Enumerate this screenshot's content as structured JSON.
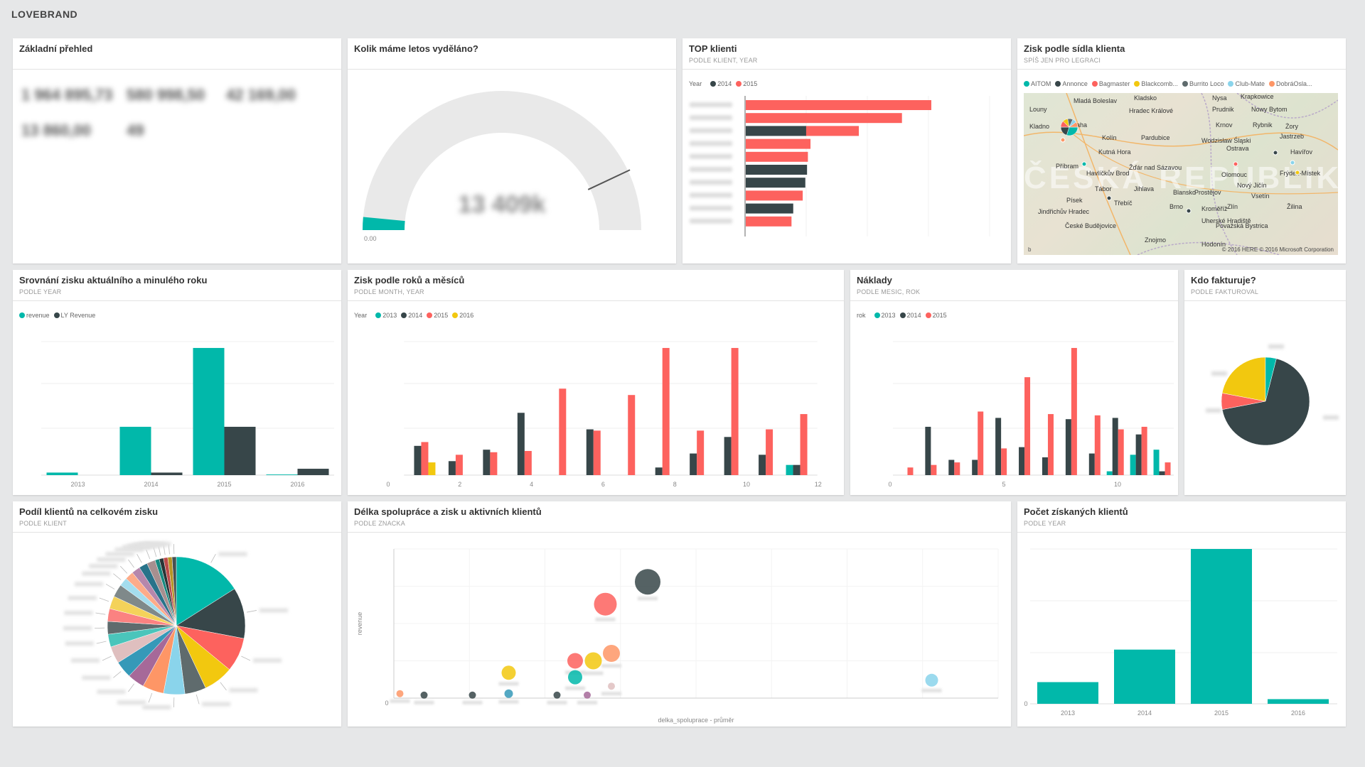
{
  "app": {
    "title": "LOVEBRAND"
  },
  "colors": {
    "teal": "#01b8aa",
    "dark": "#374649",
    "red": "#fd625e",
    "yellow": "#f2c80f",
    "gray": "#5f6b6d",
    "lightblue": "#8ad4eb",
    "orange": "#fe9666",
    "purple": "#a66999"
  },
  "tiles": {
    "basic": {
      "title": "Základní přehled",
      "kpis": [
        "1 964 895,73",
        "580 998,50",
        "42 169,00",
        "13 860,00",
        "49"
      ]
    },
    "gauge": {
      "title": "Kolik máme letos vyděláno?",
      "min_label": "0.00",
      "value_label": "13 409k",
      "fill_fraction": 0.03,
      "target_fraction": 0.86
    },
    "top": {
      "title": "TOP klienti",
      "subtitle": "PODLE KLIENT, YEAR",
      "legend_title": "Year",
      "legend": [
        {
          "name": "2014",
          "color": "#374649"
        },
        {
          "name": "2015",
          "color": "#fd625e"
        }
      ],
      "chart_data": {
        "type": "bar",
        "series_of_bars": [
          "2015",
          "2015",
          "2014",
          "2015",
          "2015",
          "2014",
          "2014",
          "2015",
          "2014",
          "2015"
        ],
        "segments": [
          [
            {
              "s": "2015",
              "v": 215
            }
          ],
          [
            {
              "s": "2015",
              "v": 181
            }
          ],
          [
            {
              "s": "2014",
              "v": 70
            },
            {
              "s": "2015",
              "v": 61
            }
          ],
          [
            {
              "s": "2015",
              "v": 75
            }
          ],
          [
            {
              "s": "2015",
              "v": 72
            }
          ],
          [
            {
              "s": "2014",
              "v": 71
            }
          ],
          [
            {
              "s": "2014",
              "v": 69
            }
          ],
          [
            {
              "s": "2015",
              "v": 66
            }
          ],
          [
            {
              "s": "2014",
              "v": 55
            }
          ],
          [
            {
              "s": "2015",
              "v": 53
            }
          ]
        ],
        "xlim": [
          0,
          290
        ]
      }
    },
    "map": {
      "title": "Zisk podle sídla klienta",
      "subtitle": "SPÍŠ JEN PRO LEGRACI",
      "legend": [
        {
          "name": "AITOM",
          "color": "#01b8aa"
        },
        {
          "name": "Annonce",
          "color": "#374649"
        },
        {
          "name": "Bagmaster",
          "color": "#fd625e"
        },
        {
          "name": "Blackcomb...",
          "color": "#f2c80f"
        },
        {
          "name": "Burrito Loco",
          "color": "#5f6b6d"
        },
        {
          "name": "Club-Mate",
          "color": "#8ad4eb"
        },
        {
          "name": "DobráOsla...",
          "color": "#fe9666"
        }
      ],
      "country": "ČESKÁ REPUBLIKA",
      "copyright": "© 2016 HERE  © 2016 Microsoft Corporation",
      "cities": [
        "Louny",
        "Mladá Boleslav",
        "Kladsko",
        "Nysa",
        "Krapkowice",
        "Kladno",
        "Hradec Králové",
        "Prudnik",
        "Nowy Bytom",
        "Praha",
        "Kolín",
        "Pardubice",
        "Krnov",
        "Rybnik",
        "Żory",
        "Wodzisław Śląski",
        "Jastrzeb",
        "Kutná Hora",
        "Ostrava",
        "Havířov",
        "Příbram",
        "Havlíčkův Brod",
        "Žďár nad Sázavou",
        "Olomouc",
        "Frýdek-Místek",
        "Tábor",
        "Jihlava",
        "Blansko",
        "Prostějov",
        "Nový Jičín",
        "Vsetín",
        "Písek",
        "Třebíč",
        "Brno",
        "Zlín",
        "Žilina",
        "Jindřichův Hradec",
        "Kroměříž",
        "Uherské Hradiště",
        "České Budějovice",
        "Považská Bystrica",
        "Znojmo",
        "Hodonín"
      ]
    },
    "compare": {
      "title": "Srovnání zisku aktuálního a minulého roku",
      "subtitle": "PODLE YEAR",
      "legend": [
        {
          "name": "revenue",
          "color": "#01b8aa"
        },
        {
          "name": "LY Revenue",
          "color": "#374649"
        }
      ],
      "chart_data": {
        "type": "bar",
        "categories": [
          "2013",
          "2014",
          "2015",
          "2016"
        ],
        "series": [
          {
            "name": "revenue",
            "values": [
              2,
              38,
              100,
              0.5
            ]
          },
          {
            "name": "LY Revenue",
            "values": [
              0,
              2,
              38,
              5
            ]
          }
        ],
        "ylim": [
          0,
          105
        ]
      }
    },
    "months": {
      "title": "Zisk podle roků a měsíců",
      "subtitle": "PODLE MONTH, YEAR",
      "legend_title": "Year",
      "legend": [
        {
          "name": "2013",
          "color": "#01b8aa"
        },
        {
          "name": "2014",
          "color": "#374649"
        },
        {
          "name": "2015",
          "color": "#fd625e"
        },
        {
          "name": "2016",
          "color": "#f2c80f"
        }
      ],
      "chart_data": {
        "type": "bar",
        "x": [
          1,
          2,
          3,
          4,
          5,
          6,
          7,
          8,
          9,
          10,
          11,
          12
        ],
        "x_ticks": [
          "0",
          "2",
          "4",
          "6",
          "8",
          "10",
          "12"
        ],
        "series": [
          {
            "name": "2013",
            "values": [
              0,
              0,
              0,
              0,
              0,
              0,
              0,
              0,
              0,
              0,
              0,
              8
            ]
          },
          {
            "name": "2014",
            "values": [
              23,
              11,
              20,
              49,
              0,
              36,
              0,
              6,
              17,
              30,
              16,
              8
            ]
          },
          {
            "name": "2015",
            "values": [
              26,
              16,
              18,
              19,
              68,
              35,
              63,
              100,
              35,
              100,
              36,
              48
            ]
          },
          {
            "name": "2016",
            "values": [
              10,
              0,
              0,
              0,
              0,
              0,
              0,
              0,
              0,
              0,
              0,
              0
            ]
          }
        ],
        "ylim": [
          0,
          105
        ]
      }
    },
    "costs": {
      "title": "Náklady",
      "subtitle": "PODLE MESIC, ROK",
      "legend_title": "rok",
      "legend": [
        {
          "name": "2013",
          "color": "#01b8aa"
        },
        {
          "name": "2014",
          "color": "#374649"
        },
        {
          "name": "2015",
          "color": "#fd625e"
        }
      ],
      "chart_data": {
        "type": "bar",
        "x": [
          1,
          2,
          3,
          4,
          5,
          6,
          7,
          8,
          9,
          10,
          11,
          12
        ],
        "x_ticks": [
          "0",
          "5",
          "10"
        ],
        "series": [
          {
            "name": "2013",
            "values": [
              0,
              0,
              0,
              0,
              0,
              0,
              0,
              0,
              0,
              3,
              16,
              20
            ]
          },
          {
            "name": "2014",
            "values": [
              0,
              38,
              12,
              12,
              45,
              22,
              14,
              44,
              17,
              45,
              32,
              3
            ]
          },
          {
            "name": "2015",
            "values": [
              6,
              8,
              10,
              50,
              21,
              77,
              48,
              100,
              47,
              36,
              38,
              10
            ]
          }
        ],
        "ylim": [
          0,
          105
        ]
      }
    },
    "invoice": {
      "title": "Kdo fakturuje?",
      "subtitle": "PODLE FAKTUROVAL",
      "chart_data": {
        "type": "pie",
        "slices": [
          {
            "value": 68,
            "color": "#374649"
          },
          {
            "value": 6,
            "color": "#fd625e"
          },
          {
            "value": 22,
            "color": "#f2c80f"
          },
          {
            "value": 4,
            "color": "#01b8aa"
          }
        ]
      }
    },
    "share": {
      "title": "Podíl klientů na celkovém zisku",
      "subtitle": "PODLE KLIENT",
      "chart_data": {
        "type": "pie",
        "slices": [
          {
            "value": 16,
            "color": "#01b8aa"
          },
          {
            "value": 12,
            "color": "#374649"
          },
          {
            "value": 8,
            "color": "#fd625e"
          },
          {
            "value": 7,
            "color": "#f2c80f"
          },
          {
            "value": 5,
            "color": "#5f6b6d"
          },
          {
            "value": 5,
            "color": "#8ad4eb"
          },
          {
            "value": 5,
            "color": "#fe9666"
          },
          {
            "value": 4,
            "color": "#a66999"
          },
          {
            "value": 4,
            "color": "#3599b8"
          },
          {
            "value": 4,
            "color": "#dfbfbf"
          },
          {
            "value": 3,
            "color": "#4ac5bb"
          },
          {
            "value": 3,
            "color": "#5f6b6d"
          },
          {
            "value": 3,
            "color": "#fb8281"
          },
          {
            "value": 3,
            "color": "#f4d25a"
          },
          {
            "value": 3,
            "color": "#7f898a"
          },
          {
            "value": 2,
            "color": "#a4ddee"
          },
          {
            "value": 2,
            "color": "#fdab89"
          },
          {
            "value": 2,
            "color": "#b687ac"
          },
          {
            "value": 2,
            "color": "#28738a"
          },
          {
            "value": 2,
            "color": "#a78f8f"
          },
          {
            "value": 1,
            "color": "#168980"
          },
          {
            "value": 1,
            "color": "#293537"
          },
          {
            "value": 1,
            "color": "#bb4a4a"
          },
          {
            "value": 1,
            "color": "#b59525"
          },
          {
            "value": 1,
            "color": "#475052"
          }
        ]
      }
    },
    "scatter": {
      "title": "Délka spolupráce a zisk u aktivních klientů",
      "subtitle": "PODLE ZNACKA",
      "xlabel": "delka_spoluprace - průměr",
      "ylabel": "revenue",
      "origin": "0",
      "chart_data": {
        "type": "scatter",
        "xlim": [
          0,
          100
        ],
        "ylim": [
          0,
          100
        ],
        "points": [
          {
            "x": 42,
            "y": 78,
            "r": 18,
            "color": "#374649"
          },
          {
            "x": 35,
            "y": 63,
            "r": 16,
            "color": "#fd625e"
          },
          {
            "x": 36,
            "y": 30,
            "r": 12,
            "color": "#fe9666"
          },
          {
            "x": 33,
            "y": 25,
            "r": 12,
            "color": "#f2c80f"
          },
          {
            "x": 30,
            "y": 25,
            "r": 11,
            "color": "#fd625e"
          },
          {
            "x": 30,
            "y": 14,
            "r": 10,
            "color": "#01b8aa"
          },
          {
            "x": 19,
            "y": 17,
            "r": 10,
            "color": "#f2c80f"
          },
          {
            "x": 89,
            "y": 12,
            "r": 9,
            "color": "#8ad4eb"
          },
          {
            "x": 19,
            "y": 3,
            "r": 6,
            "color": "#3599b8"
          },
          {
            "x": 13,
            "y": 2,
            "r": 5,
            "color": "#374649"
          },
          {
            "x": 27,
            "y": 2,
            "r": 5,
            "color": "#374649"
          },
          {
            "x": 5,
            "y": 2,
            "r": 5,
            "color": "#374649"
          },
          {
            "x": 1,
            "y": 3,
            "r": 5,
            "color": "#fe9666"
          },
          {
            "x": 32,
            "y": 2,
            "r": 5,
            "color": "#a66999"
          },
          {
            "x": 36,
            "y": 8,
            "r": 5,
            "color": "#dfbfbf"
          }
        ]
      }
    },
    "clients": {
      "title": "Počet získaných klientů",
      "subtitle": "PODLE YEAR",
      "origin": "0",
      "chart_data": {
        "type": "bar",
        "categories": [
          "2013",
          "2014",
          "2015",
          "2016"
        ],
        "values": [
          14,
          35,
          100,
          3
        ],
        "ylim": [
          0,
          100
        ]
      }
    }
  }
}
